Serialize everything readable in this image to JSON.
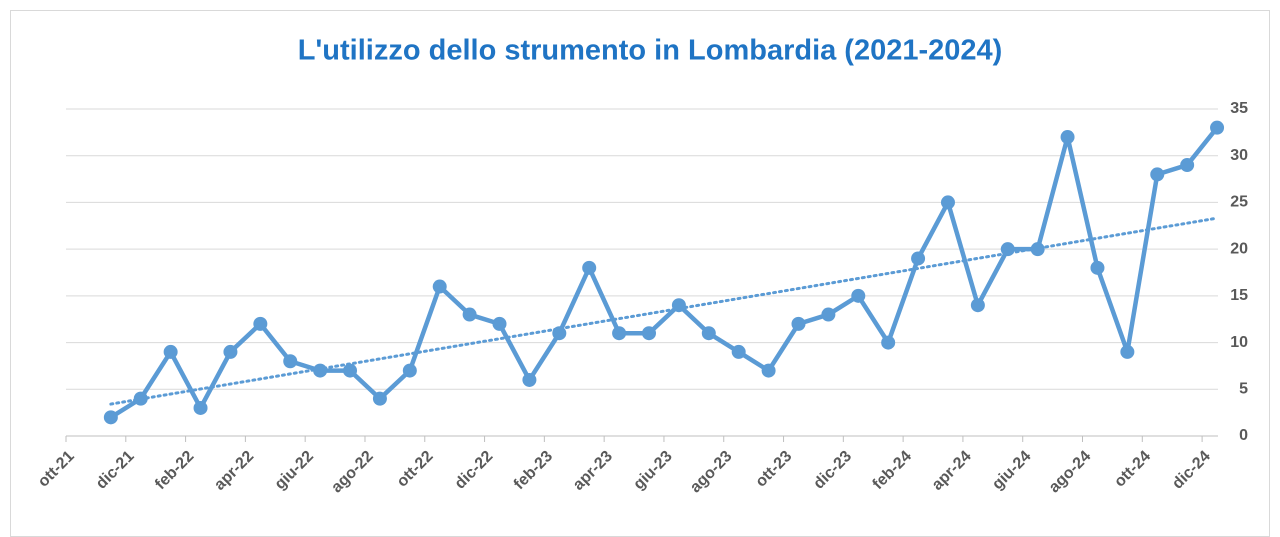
{
  "chart_data": {
    "type": "line",
    "title": "L'utilizzo dello strumento in Lombardia (2021-2024)",
    "x": [
      "2021-11",
      "2021-12",
      "2022-01",
      "2022-02",
      "2022-03",
      "2022-04",
      "2022-05",
      "2022-06",
      "2022-07",
      "2022-08",
      "2022-09",
      "2022-10",
      "2022-11",
      "2022-12",
      "2023-01",
      "2023-02",
      "2023-03",
      "2023-04",
      "2023-05",
      "2023-06",
      "2023-07",
      "2023-08",
      "2023-09",
      "2023-10",
      "2023-11",
      "2023-12",
      "2024-01",
      "2024-02",
      "2024-03",
      "2024-04",
      "2024-05",
      "2024-06",
      "2024-07",
      "2024-08",
      "2024-09",
      "2024-10",
      "2024-11",
      "2024-12"
    ],
    "values": [
      2,
      4,
      9,
      3,
      9,
      12,
      8,
      7,
      7,
      4,
      7,
      16,
      13,
      12,
      6,
      11,
      18,
      11,
      11,
      14,
      11,
      9,
      7,
      12,
      13,
      15,
      10,
      19,
      25,
      14,
      20,
      20,
      32,
      18,
      9,
      28,
      29,
      33
    ],
    "color": "#5b9bd5",
    "trendline": true,
    "trendline_color": "#5b9bd5",
    "xlim": [
      "2021-10",
      "2025-01"
    ],
    "xticks": [
      {
        "value": "2021-10",
        "label": "ott-21"
      },
      {
        "value": "2021-12",
        "label": "dic-21"
      },
      {
        "value": "2022-02",
        "label": "feb-22"
      },
      {
        "value": "2022-04",
        "label": "apr-22"
      },
      {
        "value": "2022-06",
        "label": "giu-22"
      },
      {
        "value": "2022-08",
        "label": "ago-22"
      },
      {
        "value": "2022-10",
        "label": "ott-22"
      },
      {
        "value": "2022-12",
        "label": "dic-22"
      },
      {
        "value": "2023-02",
        "label": "feb-23"
      },
      {
        "value": "2023-04",
        "label": "apr-23"
      },
      {
        "value": "2023-06",
        "label": "giu-23"
      },
      {
        "value": "2023-08",
        "label": "ago-23"
      },
      {
        "value": "2023-10",
        "label": "ott-23"
      },
      {
        "value": "2023-12",
        "label": "dic-23"
      },
      {
        "value": "2024-02",
        "label": "feb-24"
      },
      {
        "value": "2024-04",
        "label": "apr-24"
      },
      {
        "value": "2024-06",
        "label": "giu-24"
      },
      {
        "value": "2024-08",
        "label": "ago-24"
      },
      {
        "value": "2024-10",
        "label": "ott-24"
      },
      {
        "value": "2024-12",
        "label": "dic-24"
      }
    ],
    "ylim": [
      0,
      35
    ],
    "yticks": [
      0,
      5,
      10,
      15,
      20,
      25,
      30,
      35
    ],
    "y_axis_side": "right",
    "grid": true
  }
}
